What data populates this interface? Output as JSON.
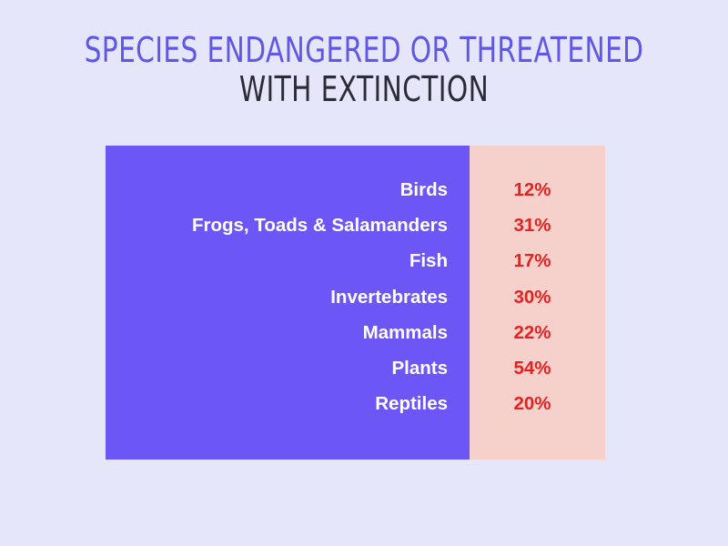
{
  "title": {
    "line1": "SPECIES ENDANGERED OR THREATENED",
    "line2": "WITH EXTINCTION"
  },
  "colors": {
    "background": "#e6e6fb",
    "title_accent": "#5f57e6",
    "title_dark": "#2c2c38",
    "label_panel": "#6c57f6",
    "value_panel": "#f6d0cb",
    "label_text": "#ffffff",
    "value_text": "#e52222"
  },
  "chart_data": {
    "type": "table",
    "title": "SPECIES ENDANGERED OR THREATENED WITH EXTINCTION",
    "categories": [
      "Birds",
      "Frogs, Toads & Salamanders",
      "Fish",
      "Invertebrates",
      "Mammals",
      "Plants",
      "Reptiles"
    ],
    "values": [
      12,
      31,
      17,
      30,
      22,
      54,
      20
    ],
    "value_labels": [
      "12%",
      "31%",
      "17%",
      "30%",
      "22%",
      "54%",
      "20%"
    ],
    "unit": "%"
  }
}
